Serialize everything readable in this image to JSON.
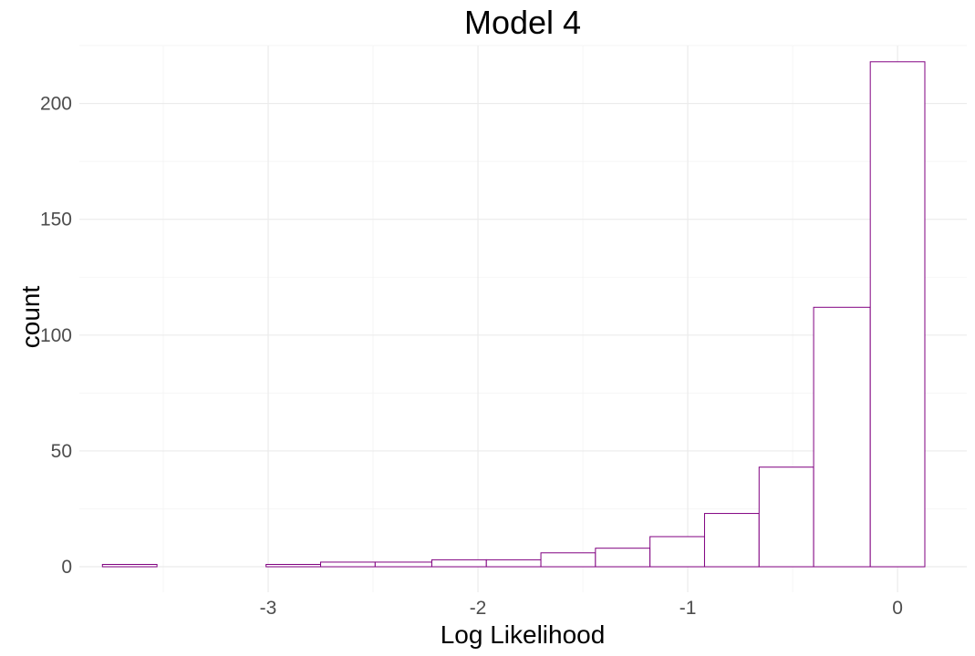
{
  "chart_data": {
    "type": "bar",
    "title": "Model 4",
    "xlabel": "Log Likelihood",
    "ylabel": "count",
    "xlim": [
      -3.9,
      0.33
    ],
    "ylim": [
      -11,
      225
    ],
    "x_ticks": [
      {
        "value": -3,
        "label": "-3"
      },
      {
        "value": -2,
        "label": "-2"
      },
      {
        "value": -1,
        "label": "-1"
      },
      {
        "value": 0,
        "label": "0"
      }
    ],
    "y_ticks": [
      {
        "value": 0,
        "label": "0"
      },
      {
        "value": 50,
        "label": "50"
      },
      {
        "value": 100,
        "label": "100"
      },
      {
        "value": 150,
        "label": "150"
      },
      {
        "value": 200,
        "label": "200"
      }
    ],
    "bins": [
      {
        "x0": -3.79,
        "x1": -3.53,
        "count": 1
      },
      {
        "x0": -3.53,
        "x1": -3.27,
        "count": 0
      },
      {
        "x0": -3.27,
        "x1": -3.01,
        "count": 0
      },
      {
        "x0": -3.01,
        "x1": -2.75,
        "count": 1
      },
      {
        "x0": -2.75,
        "x1": -2.49,
        "count": 2
      },
      {
        "x0": -2.49,
        "x1": -2.22,
        "count": 2
      },
      {
        "x0": -2.22,
        "x1": -1.96,
        "count": 3
      },
      {
        "x0": -1.96,
        "x1": -1.7,
        "count": 3
      },
      {
        "x0": -1.7,
        "x1": -1.44,
        "count": 6
      },
      {
        "x0": -1.44,
        "x1": -1.18,
        "count": 8
      },
      {
        "x0": -1.18,
        "x1": -0.92,
        "count": 13
      },
      {
        "x0": -0.92,
        "x1": -0.66,
        "count": 23
      },
      {
        "x0": -0.66,
        "x1": -0.4,
        "count": 43
      },
      {
        "x0": -0.4,
        "x1": -0.13,
        "count": 112
      },
      {
        "x0": -0.13,
        "x1": 0.13,
        "count": 218
      }
    ],
    "grid": true,
    "bar_fill": "#ffffff",
    "bar_outline": "#800080",
    "grid_major_color": "#ebebeb",
    "grid_minor_color": "#f3f3f3",
    "legend": "none"
  }
}
